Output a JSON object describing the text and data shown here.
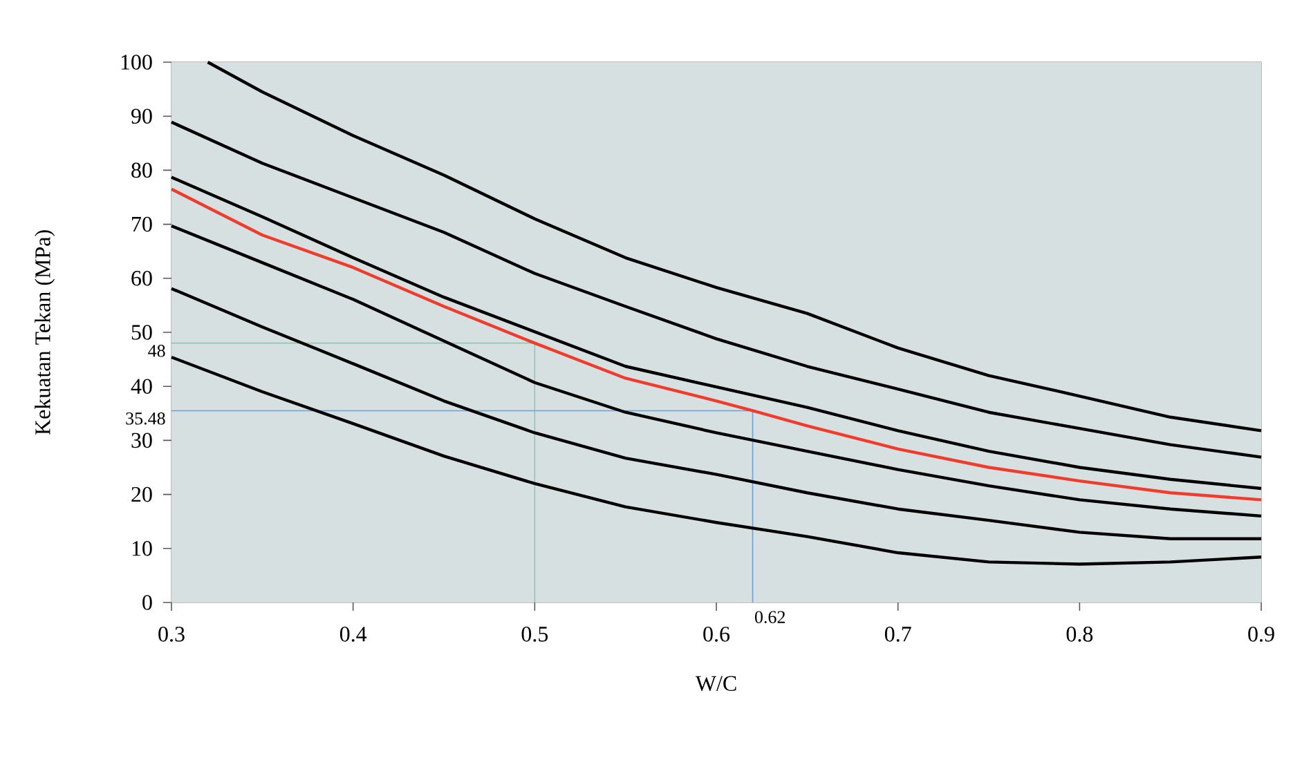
{
  "chart_data": {
    "type": "line",
    "xlabel": "W/C",
    "ylabel": "Kekuatan Tekan (MPa)",
    "xlim": [
      0.3,
      0.9
    ],
    "ylim": [
      0,
      100
    ],
    "xticks": [
      0.3,
      0.4,
      0.5,
      0.6,
      0.7,
      0.8,
      0.9
    ],
    "yticks": [
      0,
      10,
      20,
      30,
      40,
      50,
      60,
      70,
      80,
      90,
      100
    ],
    "series": [
      {
        "color": "#000000",
        "x": [
          0.32,
          0.35,
          0.4,
          0.45,
          0.5,
          0.55,
          0.6,
          0.65,
          0.7,
          0.75,
          0.8,
          0.85,
          0.9
        ],
        "values": [
          100,
          94.5,
          86.4,
          79.1,
          71,
          63.8,
          58.3,
          53.5,
          47.1,
          42,
          38.2,
          34.3,
          31.8
        ]
      },
      {
        "color": "#000000",
        "x": [
          0.3,
          0.35,
          0.4,
          0.45,
          0.5,
          0.55,
          0.6,
          0.65,
          0.7,
          0.75,
          0.8,
          0.85,
          0.9
        ],
        "values": [
          88.9,
          81.3,
          74.9,
          68.5,
          60.9,
          54.8,
          48.8,
          43.7,
          39.5,
          35.2,
          32.2,
          29.2,
          26.9
        ]
      },
      {
        "color": "#000000",
        "x": [
          0.3,
          0.35,
          0.4,
          0.45,
          0.5,
          0.55,
          0.6,
          0.65,
          0.7,
          0.75,
          0.8,
          0.85,
          0.9
        ],
        "values": [
          78.7,
          71.4,
          63.8,
          56.5,
          50.1,
          43.7,
          39.9,
          36.1,
          31.8,
          28,
          25,
          22.8,
          21.1
        ]
      },
      {
        "color": "#f03c2c",
        "x": [
          0.3,
          0.35,
          0.4,
          0.45,
          0.5,
          0.55,
          0.6,
          0.62,
          0.65,
          0.7,
          0.75,
          0.8,
          0.85,
          0.9
        ],
        "values": [
          76.5,
          68,
          62,
          54.8,
          48,
          41.5,
          37.3,
          35.5,
          32.7,
          28.4,
          25,
          22.5,
          20.3,
          19
        ]
      },
      {
        "color": "#000000",
        "x": [
          0.3,
          0.35,
          0.4,
          0.45,
          0.5,
          0.55,
          0.6,
          0.65,
          0.7,
          0.75,
          0.8,
          0.85,
          0.9
        ],
        "values": [
          69.7,
          62.9,
          56.1,
          48.4,
          40.7,
          35.2,
          31.4,
          28,
          24.6,
          21.6,
          19,
          17.3,
          16
        ]
      },
      {
        "color": "#000000",
        "x": [
          0.3,
          0.35,
          0.4,
          0.45,
          0.5,
          0.55,
          0.6,
          0.65,
          0.7,
          0.75,
          0.8,
          0.85,
          0.9
        ],
        "values": [
          58.1,
          51,
          44.2,
          37.3,
          31.4,
          26.7,
          23.7,
          20.3,
          17.3,
          15.2,
          13,
          11.8,
          11.8
        ]
      },
      {
        "color": "#000000",
        "x": [
          0.3,
          0.35,
          0.4,
          0.45,
          0.5,
          0.55,
          0.6,
          0.65,
          0.7,
          0.75,
          0.8,
          0.85,
          0.9
        ],
        "values": [
          45.4,
          39,
          33.1,
          27.1,
          22,
          17.7,
          14.8,
          12.2,
          9.2,
          7.5,
          7.1,
          7.5,
          8.4
        ]
      }
    ],
    "ref_lines": [
      {
        "axis": "y",
        "value": 48,
        "label": "48",
        "color": "#8fc8b0"
      },
      {
        "axis": "x",
        "value": 0.5,
        "label": null,
        "color": "#8fc8b0"
      },
      {
        "axis": "y",
        "value": 35.48,
        "label": "35.48",
        "color": "#6d9fd8"
      },
      {
        "axis": "x",
        "value": 0.62,
        "label": "0.62",
        "color": "#6d9fd8"
      }
    ],
    "marker": "none",
    "line_style": "solid"
  }
}
